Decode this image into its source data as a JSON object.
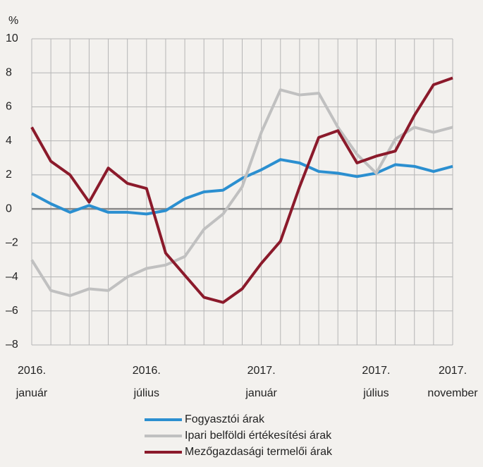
{
  "chart_data": {
    "type": "line",
    "y_unit": "%",
    "categories": [
      "2016.\njanuár",
      null,
      null,
      null,
      null,
      null,
      "2016.\njúlius",
      null,
      null,
      null,
      null,
      null,
      "2017.\njanuár",
      null,
      null,
      null,
      null,
      null,
      "2017.\njúlius",
      null,
      null,
      null,
      "2017.\nnovember"
    ],
    "series": [
      {
        "name": "Fogyasztói árak",
        "color": "#2b8fd0",
        "values": [
          0.9,
          0.3,
          -0.2,
          0.2,
          -0.2,
          -0.2,
          -0.3,
          -0.1,
          0.6,
          1.0,
          1.1,
          1.8,
          2.3,
          2.9,
          2.7,
          2.2,
          2.1,
          1.9,
          2.1,
          2.6,
          2.5,
          2.2,
          2.5
        ]
      },
      {
        "name": "Ipari belföldi értékesítési árak",
        "color": "#c0c0c0",
        "values": [
          -3.0,
          -4.8,
          -5.1,
          -4.7,
          -4.8,
          -4.0,
          -3.5,
          -3.3,
          -2.8,
          -1.2,
          -0.3,
          1.3,
          4.5,
          7.0,
          6.7,
          6.8,
          4.8,
          3.2,
          2.1,
          4.1,
          4.8,
          4.5,
          4.8
        ]
      },
      {
        "name": "Mezőgazdasági termelői árak",
        "color": "#8b1a2b",
        "values": [
          4.8,
          2.8,
          2.0,
          0.4,
          2.4,
          1.5,
          1.2,
          -2.6,
          -3.9,
          -5.2,
          -5.5,
          -4.7,
          -3.2,
          -1.9,
          1.3,
          4.2,
          4.6,
          2.7,
          3.1,
          3.4,
          5.5,
          7.3,
          7.7
        ]
      }
    ],
    "ylim": [
      -8,
      10
    ],
    "yticks": [
      {
        "value": -8,
        "label": "–8"
      },
      {
        "value": -6,
        "label": "–6"
      },
      {
        "value": -4,
        "label": "–4"
      },
      {
        "value": -2,
        "label": "–2"
      },
      0,
      2,
      4,
      6,
      8,
      10
    ],
    "grid": true
  }
}
